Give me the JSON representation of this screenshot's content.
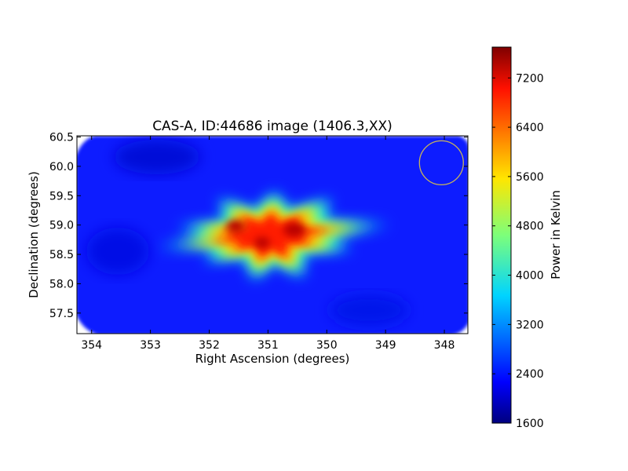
{
  "chart_data": {
    "type": "heatmap",
    "title": "CAS-A, ID:44686 image (1406.3,XX)",
    "xlabel": "Right Ascension (degrees)",
    "ylabel": "Declination (degrees)",
    "xlim": [
      354.25,
      347.6
    ],
    "ylim": [
      57.15,
      60.52
    ],
    "x_axis_direction": "decreasing to the right",
    "x_ticks": [
      354,
      353,
      352,
      351,
      350,
      349,
      348
    ],
    "x_tick_labels": [
      "354",
      "353",
      "352",
      "351",
      "350",
      "349",
      "348"
    ],
    "y_ticks": [
      57.5,
      58.0,
      58.5,
      59.0,
      59.5,
      60.0,
      60.5
    ],
    "y_tick_labels": [
      "57.5",
      "58.0",
      "58.5",
      "59.0",
      "59.5",
      "60.0",
      "60.5"
    ],
    "colormap": "jet",
    "colorbar": {
      "label": "Power in Kelvin",
      "range": [
        1600,
        7700
      ],
      "ticks": [
        1600,
        2400,
        3200,
        4000,
        4800,
        5600,
        6400,
        7200
      ],
      "tick_labels": [
        "1600",
        "2400",
        "3200",
        "4000",
        "4800",
        "5600",
        "6400",
        "7200"
      ]
    },
    "background_level": 2250,
    "source": {
      "center_ra": 351.0,
      "center_dec": 58.82,
      "peak_value": 7650,
      "shape": "eight-pointed star (sidelobe pattern)",
      "lobes": [
        {
          "ra": 352.3,
          "dec": 58.95
        },
        {
          "ra": 351.7,
          "dec": 59.35
        },
        {
          "ra": 350.9,
          "dec": 59.45
        },
        {
          "ra": 350.1,
          "dec": 59.35
        },
        {
          "ra": 349.25,
          "dec": 58.98
        },
        {
          "ra": 349.8,
          "dec": 58.62
        },
        {
          "ra": 350.5,
          "dec": 58.22
        },
        {
          "ra": 351.2,
          "dec": 58.18
        },
        {
          "ra": 351.9,
          "dec": 58.45
        },
        {
          "ra": 352.6,
          "dec": 58.65
        }
      ]
    },
    "beam_marker": {
      "ra": 348.05,
      "dec": 60.06,
      "color": "#c8b45a"
    },
    "grid": false
  }
}
